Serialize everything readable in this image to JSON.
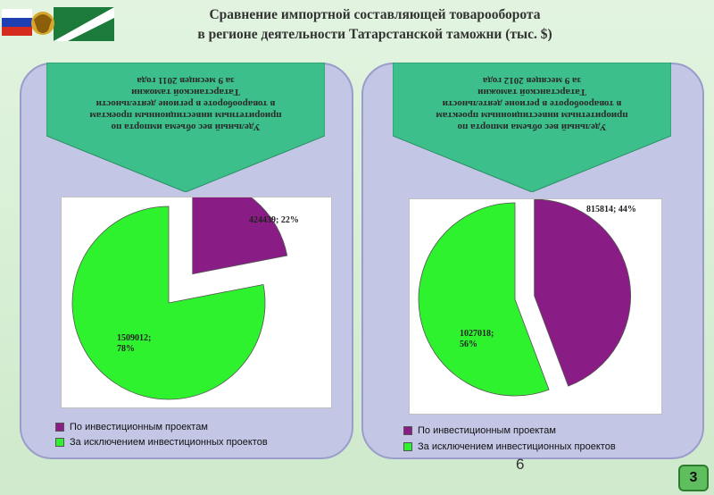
{
  "header": {
    "title_line1": "Сравнение импортной составляющей товарооборота",
    "title_line2": "в регионе деятельности Татарстанской таможни (тыс. $)"
  },
  "colors": {
    "invest": "#8a1c86",
    "other": "#2ef22e",
    "banner": "#3cbf8a"
  },
  "chart_data": [
    {
      "type": "pie",
      "title": "Удельный вес объема импорта по приоритетным инвестиционным проектам в товарообороте в регионе деятельности Татарстанской таможни за 9 месяцев 2011 года",
      "title_lines": [
        "Удельный вес объема импорта по",
        "приоритетным инвестиционным проектам",
        "в товарообороте в регионе деятельности",
        "Татарстанской таможни",
        "за 9 месяцев 2011 года"
      ],
      "series": [
        {
          "name": "По инвестиционным проектам",
          "value": 424439,
          "percent": 22,
          "label": "424439; 22%"
        },
        {
          "name": "За исключением инвестиционных проектов",
          "value": 1509012,
          "percent": 78,
          "label": "1509012;\n78%"
        }
      ],
      "legend_position": "bottom"
    },
    {
      "type": "pie",
      "title": "Удельный вес объема импорта по приоритетным инвестиционным проектам в товарообороте в регионе деятельности Татарстанской таможни за 9 месяцев 2012 года",
      "title_lines": [
        "Удельный вес объема импорта по",
        "приоритетным инвестиционным проектам",
        "в товарообороте в регионе деятельности",
        "Татарстанской таможни",
        "за 9 месяцев 2012 года"
      ],
      "series": [
        {
          "name": "По инвестиционным проектам",
          "value": 815814,
          "percent": 44,
          "label": "815814; 44%"
        },
        {
          "name": "За исключением инвестиционных проектов",
          "value": 1027018,
          "percent": 56,
          "label": "1027018;\n56%"
        }
      ],
      "legend_position": "bottom"
    }
  ],
  "legend": {
    "left": [
      "По инвестиционным проектам",
      "За исключением инвестиционных проектов"
    ],
    "right": [
      "По инвестиционным проектам",
      "За исключением инвестиционных проектов"
    ]
  },
  "footer": {
    "page_number": "6",
    "slide_badge": "3"
  }
}
